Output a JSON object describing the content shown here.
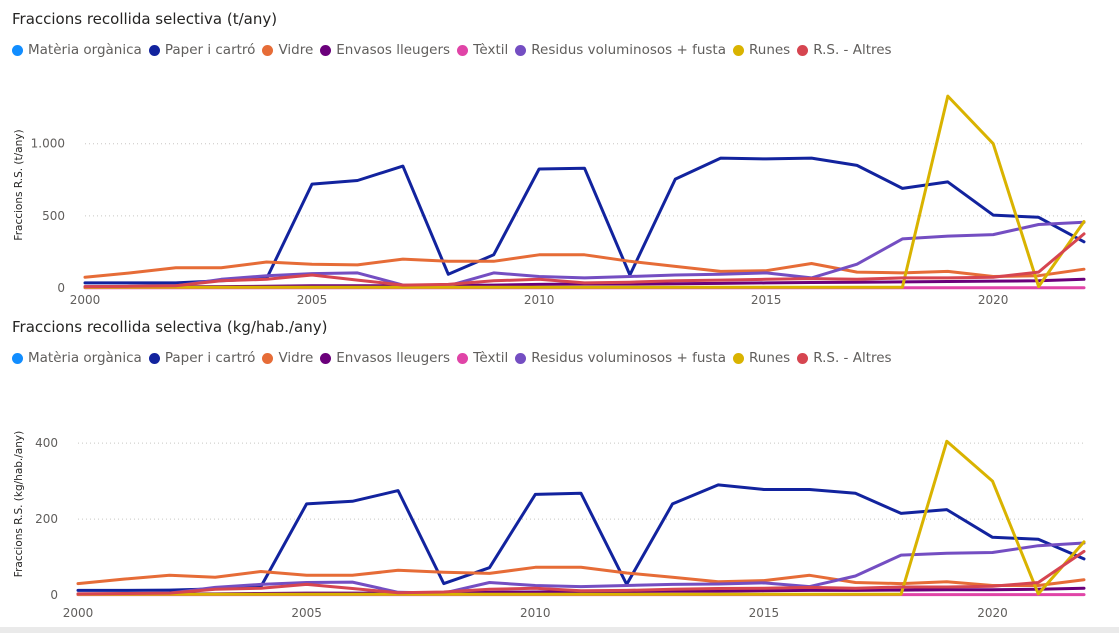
{
  "chart_data": [
    {
      "type": "line",
      "title": "Fraccions recollida selectiva (t/any)",
      "ylabel": "Fraccions R.S. (t/any)",
      "xlabel": "",
      "ylim": [
        0,
        1400
      ],
      "yticks": [
        0,
        500,
        1000
      ],
      "ytick_labels": [
        "0",
        "500",
        "1.000"
      ],
      "xlim": [
        2000,
        2022
      ],
      "xticks": [
        2000,
        2005,
        2010,
        2015,
        2020
      ],
      "xtick_labels": [
        "2000",
        "2005",
        "2010",
        "2015",
        "2020"
      ],
      "x": [
        2000,
        2001,
        2002,
        2003,
        2004,
        2005,
        2006,
        2007,
        2008,
        2009,
        2010,
        2011,
        2012,
        2013,
        2014,
        2015,
        2016,
        2017,
        2018,
        2019,
        2020,
        2021,
        2022
      ],
      "series": [
        {
          "name": "Matèria orgànica",
          "color": "#118DFF",
          "values": [
            null,
            null,
            null,
            null,
            null,
            null,
            null,
            null,
            null,
            null,
            null,
            null,
            null,
            null,
            null,
            null,
            null,
            null,
            null,
            null,
            null,
            null,
            null
          ]
        },
        {
          "name": "Paper i cartró",
          "color": "#12239E",
          "values": [
            35,
            35,
            35,
            50,
            65,
            720,
            745,
            845,
            95,
            230,
            825,
            830,
            90,
            755,
            900,
            895,
            900,
            850,
            690,
            735,
            505,
            490,
            320
          ]
        },
        {
          "name": "Vidre",
          "color": "#E66C37",
          "values": [
            75,
            105,
            140,
            140,
            180,
            165,
            160,
            200,
            185,
            185,
            230,
            230,
            185,
            150,
            115,
            120,
            170,
            110,
            105,
            115,
            80,
            85,
            130
          ]
        },
        {
          "name": "Envasos lleugers",
          "color": "#6B007B",
          "values": [
            5,
            5,
            8,
            10,
            12,
            15,
            15,
            15,
            18,
            20,
            25,
            28,
            28,
            30,
            32,
            35,
            38,
            40,
            42,
            45,
            48,
            50,
            60
          ]
        },
        {
          "name": "Tèxtil",
          "color": "#E044A7",
          "values": [
            2,
            2,
            2,
            2,
            2,
            2,
            2,
            2,
            2,
            2,
            2,
            2,
            2,
            2,
            2,
            2,
            2,
            2,
            2,
            2,
            2,
            2,
            2
          ]
        },
        {
          "name": "Residus voluminosos + fusta",
          "color": "#744EC2",
          "values": [
            10,
            10,
            15,
            60,
            85,
            100,
            105,
            20,
            15,
            105,
            80,
            70,
            80,
            90,
            95,
            105,
            70,
            165,
            340,
            360,
            370,
            440,
            455
          ]
        },
        {
          "name": "Runes",
          "color": "#D9B300",
          "values": [
            5,
            5,
            5,
            5,
            5,
            5,
            5,
            5,
            5,
            5,
            5,
            5,
            5,
            5,
            5,
            5,
            5,
            5,
            5,
            1330,
            1000,
            10,
            460
          ]
        },
        {
          "name": "R.S. - Altres",
          "color": "#D64550",
          "values": [
            10,
            12,
            15,
            50,
            60,
            90,
            55,
            20,
            25,
            50,
            60,
            35,
            40,
            50,
            55,
            60,
            65,
            60,
            70,
            70,
            75,
            110,
            375
          ]
        }
      ]
    },
    {
      "type": "line",
      "title": "Fraccions recollida selectiva (kg/hab./any)",
      "ylabel": "Fraccions R.S. (kg/hab./any)",
      "xlabel": "",
      "ylim": [
        0,
        440
      ],
      "yticks": [
        0,
        200,
        400
      ],
      "ytick_labels": [
        "0",
        "200",
        "400"
      ],
      "xlim": [
        2000,
        2022
      ],
      "xticks": [
        2000,
        2005,
        2010,
        2015,
        2020
      ],
      "xtick_labels": [
        "2000",
        "2005",
        "2010",
        "2015",
        "2020"
      ],
      "x": [
        2000,
        2001,
        2002,
        2003,
        2004,
        2005,
        2006,
        2007,
        2008,
        2009,
        2010,
        2011,
        2012,
        2013,
        2014,
        2015,
        2016,
        2017,
        2018,
        2019,
        2020,
        2021,
        2022
      ],
      "series": [
        {
          "name": "Matèria orgànica",
          "color": "#118DFF",
          "values": [
            null,
            null,
            null,
            null,
            null,
            null,
            null,
            null,
            null,
            null,
            null,
            null,
            null,
            null,
            null,
            null,
            null,
            null,
            null,
            null,
            null,
            null,
            null
          ]
        },
        {
          "name": "Paper i cartró",
          "color": "#12239E",
          "values": [
            12,
            12,
            13,
            16,
            22,
            240,
            247,
            275,
            30,
            72,
            265,
            268,
            28,
            240,
            290,
            278,
            278,
            268,
            215,
            225,
            152,
            147,
            95
          ]
        },
        {
          "name": "Vidre",
          "color": "#E66C37",
          "values": [
            30,
            42,
            52,
            47,
            62,
            52,
            52,
            65,
            60,
            57,
            73,
            73,
            58,
            47,
            35,
            38,
            52,
            33,
            30,
            35,
            25,
            25,
            40
          ]
        },
        {
          "name": "Envasos lleugers",
          "color": "#6B007B",
          "values": [
            2,
            2,
            3,
            3,
            4,
            5,
            5,
            5,
            6,
            7,
            8,
            9,
            9,
            10,
            10,
            11,
            12,
            12,
            13,
            14,
            14,
            15,
            18
          ]
        },
        {
          "name": "Tèxtil",
          "color": "#E044A7",
          "values": [
            1,
            1,
            1,
            1,
            1,
            1,
            1,
            1,
            1,
            1,
            1,
            1,
            1,
            1,
            1,
            1,
            1,
            1,
            1,
            1,
            1,
            1,
            1
          ]
        },
        {
          "name": "Residus voluminosos + fusta",
          "color": "#744EC2",
          "values": [
            3,
            3,
            5,
            20,
            28,
            33,
            34,
            7,
            5,
            33,
            25,
            22,
            25,
            28,
            29,
            32,
            22,
            50,
            105,
            110,
            112,
            130,
            137
          ]
        },
        {
          "name": "Runes",
          "color": "#D9B300",
          "values": [
            2,
            2,
            2,
            2,
            2,
            2,
            2,
            2,
            2,
            2,
            2,
            2,
            2,
            2,
            2,
            2,
            2,
            2,
            2,
            405,
            300,
            3,
            140
          ]
        },
        {
          "name": "R.S. - Altres",
          "color": "#D64550",
          "values": [
            3,
            4,
            5,
            15,
            18,
            28,
            17,
            6,
            8,
            15,
            18,
            11,
            12,
            15,
            17,
            18,
            20,
            18,
            21,
            21,
            23,
            33,
            115
          ]
        }
      ]
    }
  ]
}
